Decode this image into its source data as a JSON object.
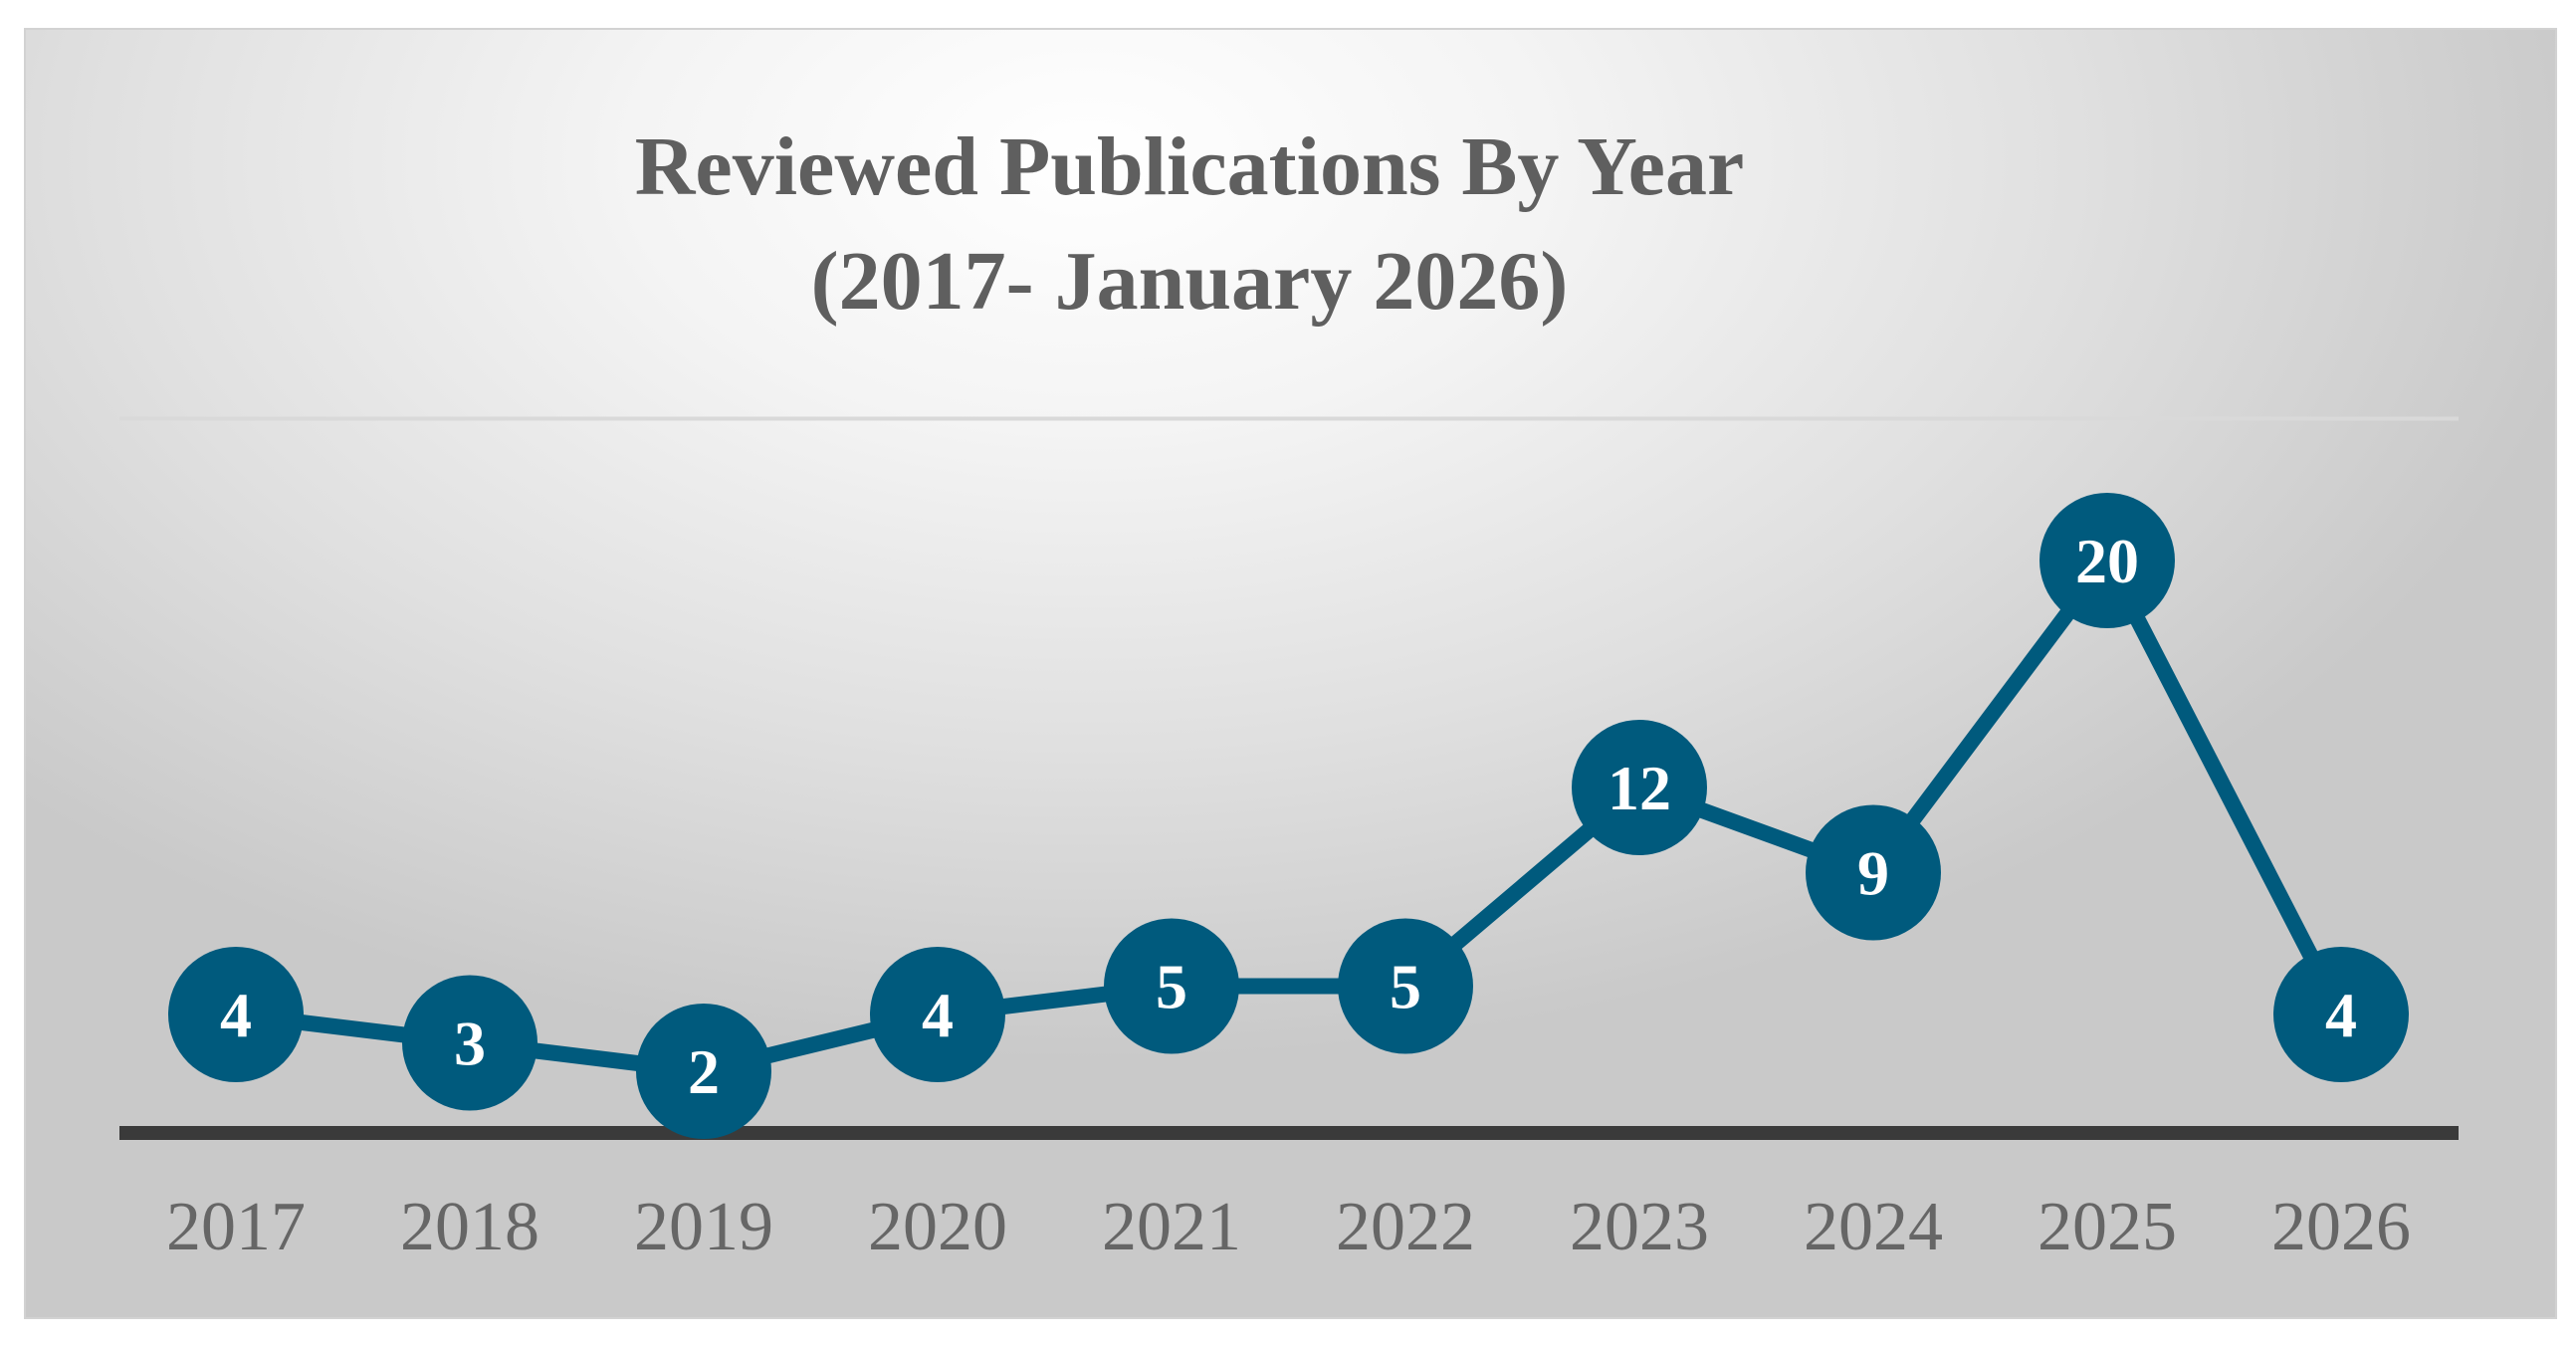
{
  "chart_data": {
    "type": "line",
    "title": "Reviewed Publications By Year",
    "subtitle": "(2017- January 2026)",
    "categories": [
      "2017",
      "2018",
      "2019",
      "2020",
      "2021",
      "2022",
      "2023",
      "2024",
      "2025",
      "2026"
    ],
    "series": [
      {
        "values": [
          4,
          3,
          2,
          4,
          5,
          5,
          12,
          9,
          20,
          4
        ]
      }
    ],
    "ylim": [
      0,
      25
    ],
    "gridlines": [
      5,
      10,
      15,
      20,
      25
    ],
    "grid": true,
    "legend": "none",
    "xlabel": "",
    "ylabel": "",
    "data_labels": true,
    "colors": {
      "line": "#005a7d",
      "marker": "#005a7d",
      "baseline": "#3a3a3a",
      "label_text": "#ffffff"
    }
  }
}
